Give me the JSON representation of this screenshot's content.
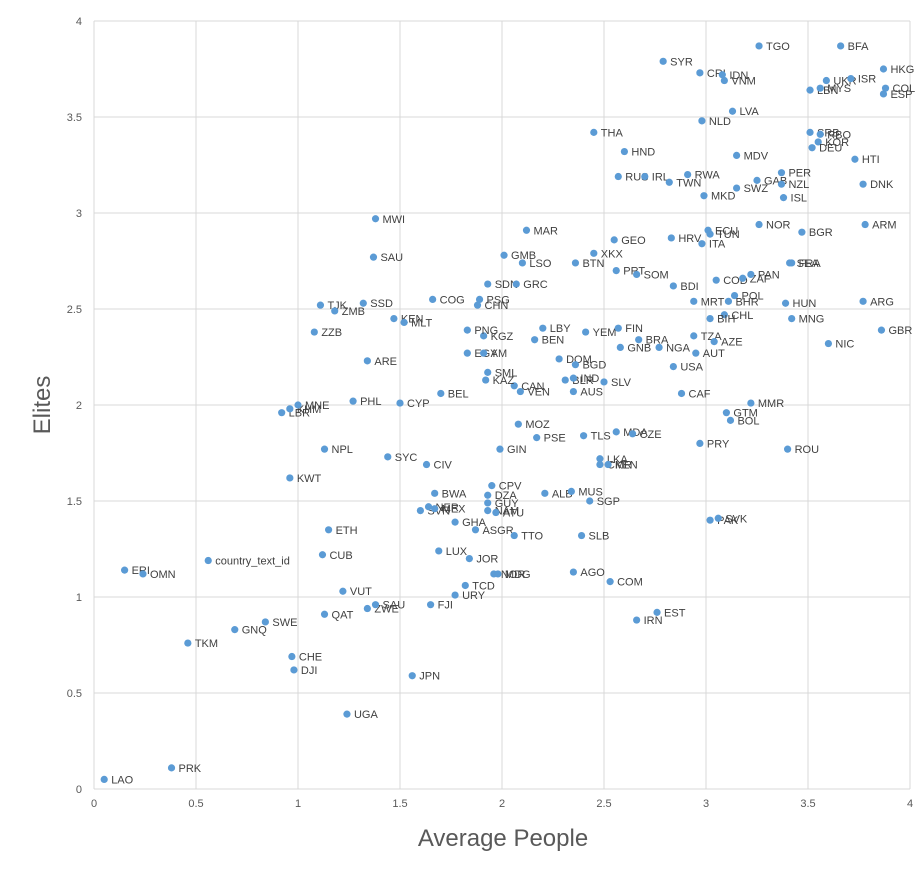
{
  "chart_data": {
    "type": "scatter",
    "title": "",
    "xlabel": "Average People",
    "ylabel": "Elites",
    "xlim": [
      0,
      4
    ],
    "ylim": [
      0,
      4
    ],
    "x_ticks": [
      "0",
      "0.5",
      "1",
      "1.5",
      "2",
      "2.5",
      "3",
      "3.5",
      "4"
    ],
    "y_ticks": [
      "0",
      "0.5",
      "1",
      "1.5",
      "2",
      "2.5",
      "3",
      "3.5",
      "4"
    ],
    "grid": true,
    "legend": "none",
    "marker_color": "#5b9bd5",
    "points": [
      {
        "label": "LAO",
        "x": 0.05,
        "y": 0.05
      },
      {
        "label": "PRK",
        "x": 0.38,
        "y": 0.11
      },
      {
        "label": "UGA",
        "x": 1.24,
        "y": 0.39
      },
      {
        "label": "JPN",
        "x": 1.56,
        "y": 0.59
      },
      {
        "label": "DJI",
        "x": 0.98,
        "y": 0.62
      },
      {
        "label": "CHE",
        "x": 0.97,
        "y": 0.69
      },
      {
        "label": "TKM",
        "x": 0.46,
        "y": 0.76
      },
      {
        "label": "GNQ",
        "x": 0.69,
        "y": 0.83
      },
      {
        "label": "SWE",
        "x": 0.84,
        "y": 0.87
      },
      {
        "label": "QAT",
        "x": 1.13,
        "y": 0.91
      },
      {
        "label": "ZWE",
        "x": 1.34,
        "y": 0.94
      },
      {
        "label": "SAU",
        "x": 1.38,
        "y": 0.96
      },
      {
        "label": "ERI",
        "x": 0.15,
        "y": 1.14
      },
      {
        "label": "OMN",
        "x": 0.24,
        "y": 1.12
      },
      {
        "label": "country_text_id",
        "x": 0.56,
        "y": 1.19
      },
      {
        "label": "CUB",
        "x": 1.12,
        "y": 1.22
      },
      {
        "label": "VUT",
        "x": 1.22,
        "y": 1.03
      },
      {
        "label": "FJI",
        "x": 1.65,
        "y": 0.96
      },
      {
        "label": "URY",
        "x": 1.77,
        "y": 1.01
      },
      {
        "label": "TCD",
        "x": 1.82,
        "y": 1.06
      },
      {
        "label": "LUX",
        "x": 1.69,
        "y": 1.24
      },
      {
        "label": "JOR",
        "x": 1.84,
        "y": 1.2
      },
      {
        "label": "NOR",
        "x": 1.96,
        "y": 1.12
      },
      {
        "label": "MDG",
        "x": 1.98,
        "y": 1.12
      },
      {
        "label": "AGO",
        "x": 2.35,
        "y": 1.13
      },
      {
        "label": "COM",
        "x": 2.53,
        "y": 1.08
      },
      {
        "label": "EST",
        "x": 2.76,
        "y": 0.92
      },
      {
        "label": "IRN",
        "x": 2.66,
        "y": 0.88
      },
      {
        "label": "ETH",
        "x": 1.15,
        "y": 1.35
      },
      {
        "label": "GHA",
        "x": 1.77,
        "y": 1.39
      },
      {
        "label": "ASGR",
        "x": 1.87,
        "y": 1.35
      },
      {
        "label": "TTO",
        "x": 2.06,
        "y": 1.32
      },
      {
        "label": "SLB",
        "x": 2.39,
        "y": 1.32
      },
      {
        "label": "SVN",
        "x": 1.6,
        "y": 1.45
      },
      {
        "label": "NER",
        "x": 1.64,
        "y": 1.47
      },
      {
        "label": "MEX",
        "x": 1.67,
        "y": 1.46
      },
      {
        "label": "NAM",
        "x": 1.93,
        "y": 1.45
      },
      {
        "label": "ATU",
        "x": 1.97,
        "y": 1.44
      },
      {
        "label": "BWA",
        "x": 1.67,
        "y": 1.54
      },
      {
        "label": "DZA",
        "x": 1.93,
        "y": 1.53
      },
      {
        "label": "GUY",
        "x": 1.93,
        "y": 1.49
      },
      {
        "label": "CPV",
        "x": 1.95,
        "y": 1.58
      },
      {
        "label": "ALB",
        "x": 2.21,
        "y": 1.54
      },
      {
        "label": "MUS",
        "x": 2.34,
        "y": 1.55
      },
      {
        "label": "SGP",
        "x": 2.43,
        "y": 1.5
      },
      {
        "label": "PAK",
        "x": 3.02,
        "y": 1.4
      },
      {
        "label": "SVK",
        "x": 3.06,
        "y": 1.41
      },
      {
        "label": "KWT",
        "x": 0.96,
        "y": 1.62
      },
      {
        "label": "NPL",
        "x": 1.13,
        "y": 1.77
      },
      {
        "label": "SYC",
        "x": 1.44,
        "y": 1.73
      },
      {
        "label": "CIV",
        "x": 1.63,
        "y": 1.69
      },
      {
        "label": "GIN",
        "x": 1.99,
        "y": 1.77
      },
      {
        "label": "MOZ",
        "x": 2.08,
        "y": 1.9
      },
      {
        "label": "PSE",
        "x": 2.17,
        "y": 1.83
      },
      {
        "label": "TLS",
        "x": 2.4,
        "y": 1.84
      },
      {
        "label": "MDA",
        "x": 2.56,
        "y": 1.86
      },
      {
        "label": "CZE",
        "x": 2.64,
        "y": 1.85
      },
      {
        "label": "LKA",
        "x": 2.48,
        "y": 1.72
      },
      {
        "label": "CMR",
        "x": 2.48,
        "y": 1.69
      },
      {
        "label": "KEN",
        "x": 2.52,
        "y": 1.69
      },
      {
        "label": "PRY",
        "x": 2.97,
        "y": 1.8
      },
      {
        "label": "GTM",
        "x": 3.1,
        "y": 1.96
      },
      {
        "label": "BOL",
        "x": 3.12,
        "y": 1.92
      },
      {
        "label": "ROU",
        "x": 3.4,
        "y": 1.77
      },
      {
        "label": "MMR",
        "x": 3.22,
        "y": 2.01
      },
      {
        "label": "LBR",
        "x": 0.92,
        "y": 1.96
      },
      {
        "label": "KHM",
        "x": 0.96,
        "y": 1.98
      },
      {
        "label": "MNE",
        "x": 1,
        "y": 2
      },
      {
        "label": "PHL",
        "x": 1.27,
        "y": 2.02
      },
      {
        "label": "CYP",
        "x": 1.5,
        "y": 2.01
      },
      {
        "label": "BEL",
        "x": 1.7,
        "y": 2.06
      },
      {
        "label": "CAN",
        "x": 2.06,
        "y": 2.1
      },
      {
        "label": "VEN",
        "x": 2.09,
        "y": 2.07
      },
      {
        "label": "KAZ",
        "x": 1.92,
        "y": 2.13
      },
      {
        "label": "SML",
        "x": 1.93,
        "y": 2.17
      },
      {
        "label": "AUS",
        "x": 2.35,
        "y": 2.07
      },
      {
        "label": "BLR",
        "x": 2.31,
        "y": 2.13
      },
      {
        "label": "IND",
        "x": 2.35,
        "y": 2.14
      },
      {
        "label": "DOM",
        "x": 2.28,
        "y": 2.24
      },
      {
        "label": "BGD",
        "x": 2.36,
        "y": 2.21
      },
      {
        "label": "SLV",
        "x": 2.5,
        "y": 2.12
      },
      {
        "label": "USA",
        "x": 2.84,
        "y": 2.2
      },
      {
        "label": "CAF",
        "x": 2.88,
        "y": 2.06
      },
      {
        "label": "NGA",
        "x": 2.77,
        "y": 2.3
      },
      {
        "label": "AUT",
        "x": 2.95,
        "y": 2.27
      },
      {
        "label": "BRA",
        "x": 2.67,
        "y": 2.34
      },
      {
        "label": "TZA",
        "x": 2.94,
        "y": 2.36
      },
      {
        "label": "AZE",
        "x": 3.04,
        "y": 2.33
      },
      {
        "label": "GNB",
        "x": 2.58,
        "y": 2.3
      },
      {
        "label": "EGY",
        "x": 1.83,
        "y": 2.27
      },
      {
        "label": "AM",
        "x": 1.91,
        "y": 2.27
      },
      {
        "label": "YEM",
        "x": 2.41,
        "y": 2.38
      },
      {
        "label": "BEN",
        "x": 2.16,
        "y": 2.34
      },
      {
        "label": "KGZ",
        "x": 1.91,
        "y": 2.36
      },
      {
        "label": "PNG",
        "x": 1.83,
        "y": 2.39
      },
      {
        "label": "LBY",
        "x": 2.2,
        "y": 2.4
      },
      {
        "label": "FIN",
        "x": 2.57,
        "y": 2.4
      },
      {
        "label": "ARE",
        "x": 1.34,
        "y": 2.23
      },
      {
        "label": "ZZB",
        "x": 1.08,
        "y": 2.38
      },
      {
        "label": "TJK",
        "x": 1.11,
        "y": 2.52
      },
      {
        "label": "ZMB",
        "x": 1.18,
        "y": 2.49
      },
      {
        "label": "SSD",
        "x": 1.32,
        "y": 2.53
      },
      {
        "label": "KEN",
        "x": 1.47,
        "y": 2.45
      },
      {
        "label": "MLT",
        "x": 1.52,
        "y": 2.43
      },
      {
        "label": "COG",
        "x": 1.66,
        "y": 2.55
      },
      {
        "label": "PSG",
        "x": 1.89,
        "y": 2.55
      },
      {
        "label": "CHN",
        "x": 1.88,
        "y": 2.52
      },
      {
        "label": "SDN",
        "x": 1.93,
        "y": 2.63
      },
      {
        "label": "GRC",
        "x": 2.07,
        "y": 2.63
      },
      {
        "label": "MWI",
        "x": 1.38,
        "y": 2.97
      },
      {
        "label": "SAU",
        "x": 1.37,
        "y": 2.77
      },
      {
        "label": "GMB",
        "x": 2.01,
        "y": 2.78
      },
      {
        "label": "LSO",
        "x": 2.1,
        "y": 2.74
      },
      {
        "label": "BTN",
        "x": 2.36,
        "y": 2.74
      },
      {
        "label": "XKX",
        "x": 2.45,
        "y": 2.79
      },
      {
        "label": "MAR",
        "x": 2.12,
        "y": 2.91
      },
      {
        "label": "GEO",
        "x": 2.55,
        "y": 2.86
      },
      {
        "label": "PRT",
        "x": 2.56,
        "y": 2.7
      },
      {
        "label": "SOM",
        "x": 2.66,
        "y": 2.68
      },
      {
        "label": "BDI",
        "x": 2.84,
        "y": 2.62
      },
      {
        "label": "HRV",
        "x": 2.83,
        "y": 2.87
      },
      {
        "label": "ITA",
        "x": 2.98,
        "y": 2.84
      },
      {
        "label": "ECU",
        "x": 3.01,
        "y": 2.91
      },
      {
        "label": "TUN",
        "x": 3.02,
        "y": 2.89
      },
      {
        "label": "COD",
        "x": 3.05,
        "y": 2.65
      },
      {
        "label": "ZAF",
        "x": 3.18,
        "y": 2.66
      },
      {
        "label": "PAN",
        "x": 3.22,
        "y": 2.68
      },
      {
        "label": "FRA",
        "x": 3.42,
        "y": 2.74
      },
      {
        "label": "SEA",
        "x": 3.41,
        "y": 2.74
      },
      {
        "label": "POL",
        "x": 3.14,
        "y": 2.57
      },
      {
        "label": "MRT",
        "x": 2.94,
        "y": 2.54
      },
      {
        "label": "BHR",
        "x": 3.11,
        "y": 2.54
      },
      {
        "label": "HUN",
        "x": 3.39,
        "y": 2.53
      },
      {
        "label": "CHL",
        "x": 3.09,
        "y": 2.47
      },
      {
        "label": "BIH",
        "x": 3.02,
        "y": 2.45
      },
      {
        "label": "MNG",
        "x": 3.42,
        "y": 2.45
      },
      {
        "label": "NIC",
        "x": 3.6,
        "y": 2.32
      },
      {
        "label": "ARG",
        "x": 3.77,
        "y": 2.54
      },
      {
        "label": "GBR",
        "x": 3.86,
        "y": 2.39
      },
      {
        "label": "NOR",
        "x": 3.26,
        "y": 2.94
      },
      {
        "label": "BGR",
        "x": 3.47,
        "y": 2.9
      },
      {
        "label": "ARM",
        "x": 3.78,
        "y": 2.94
      },
      {
        "label": "SYR",
        "x": 2.79,
        "y": 3.79
      },
      {
        "label": "CRI",
        "x": 2.97,
        "y": 3.73
      },
      {
        "label": "IDN",
        "x": 3.08,
        "y": 3.72
      },
      {
        "label": "VNM",
        "x": 3.09,
        "y": 3.69
      },
      {
        "label": "TGO",
        "x": 3.26,
        "y": 3.87
      },
      {
        "label": "BFA",
        "x": 3.66,
        "y": 3.87
      },
      {
        "label": "HKG",
        "x": 3.87,
        "y": 3.75
      },
      {
        "label": "UKR",
        "x": 3.59,
        "y": 3.69
      },
      {
        "label": "ISR",
        "x": 3.71,
        "y": 3.7
      },
      {
        "label": "LBN",
        "x": 3.51,
        "y": 3.64
      },
      {
        "label": "MYS",
        "x": 3.56,
        "y": 3.65
      },
      {
        "label": "COL",
        "x": 3.88,
        "y": 3.65
      },
      {
        "label": "ESP",
        "x": 3.87,
        "y": 3.62
      },
      {
        "label": "LVA",
        "x": 3.13,
        "y": 3.53
      },
      {
        "label": "NLD",
        "x": 2.98,
        "y": 3.48
      },
      {
        "label": "THA",
        "x": 2.45,
        "y": 3.42
      },
      {
        "label": "SRB",
        "x": 3.51,
        "y": 3.42
      },
      {
        "label": "RBO",
        "x": 3.56,
        "y": 3.41
      },
      {
        "label": "KOR",
        "x": 3.55,
        "y": 3.37
      },
      {
        "label": "DEU",
        "x": 3.52,
        "y": 3.34
      },
      {
        "label": "HND",
        "x": 2.6,
        "y": 3.32
      },
      {
        "label": "MDV",
        "x": 3.15,
        "y": 3.3
      },
      {
        "label": "HTI",
        "x": 3.73,
        "y": 3.28
      },
      {
        "label": "RUS",
        "x": 2.57,
        "y": 3.19
      },
      {
        "label": "IRL",
        "x": 2.7,
        "y": 3.19
      },
      {
        "label": "RWA",
        "x": 2.91,
        "y": 3.2
      },
      {
        "label": "TWN",
        "x": 2.82,
        "y": 3.16
      },
      {
        "label": "PER",
        "x": 3.37,
        "y": 3.21
      },
      {
        "label": "GAB",
        "x": 3.25,
        "y": 3.17
      },
      {
        "label": "NZL",
        "x": 3.37,
        "y": 3.15
      },
      {
        "label": "SWZ",
        "x": 3.15,
        "y": 3.13
      },
      {
        "label": "MKD",
        "x": 2.99,
        "y": 3.09
      },
      {
        "label": "ISL",
        "x": 3.38,
        "y": 3.08
      },
      {
        "label": "DNK",
        "x": 3.77,
        "y": 3.15
      }
    ]
  }
}
